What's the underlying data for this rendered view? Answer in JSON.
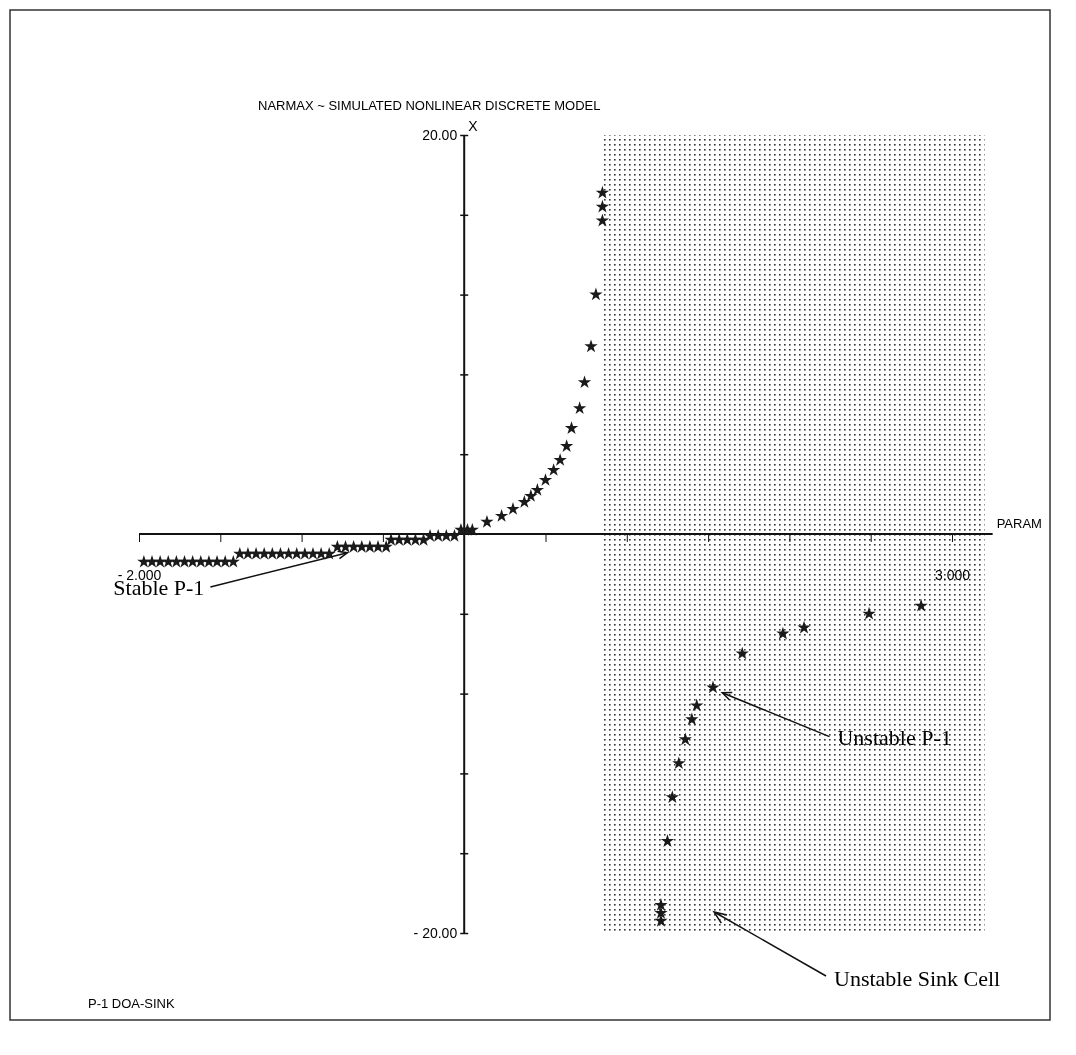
{
  "chart_data": {
    "type": "scatter",
    "title": "NARMAX ~ SIMULATED NONLINEAR DISCRETE MODEL",
    "xlabel": "PARAM",
    "ylabel": "X",
    "xlim": [
      -2,
      3.25
    ],
    "ylim": [
      -20,
      20
    ],
    "xticks": [
      {
        "value": -2,
        "label": "- 2.000"
      },
      {
        "value": -1.5,
        "label": null
      },
      {
        "value": -1,
        "label": null
      },
      {
        "value": -0.5,
        "label": null
      },
      {
        "value": 0.5,
        "label": null
      },
      {
        "value": 1,
        "label": null
      },
      {
        "value": 1.5,
        "label": null
      },
      {
        "value": 2,
        "label": null
      },
      {
        "value": 2.5,
        "label": null
      },
      {
        "value": 3,
        "label": "3.000"
      }
    ],
    "yticks": [
      {
        "value": -20,
        "label": "- 20.00"
      },
      {
        "value": -16,
        "label": null
      },
      {
        "value": -12,
        "label": null
      },
      {
        "value": -8,
        "label": null
      },
      {
        "value": -4,
        "label": null
      },
      {
        "value": 4,
        "label": null
      },
      {
        "value": 8,
        "label": null
      },
      {
        "value": 12,
        "label": null
      },
      {
        "value": 16,
        "label": null
      },
      {
        "value": 20,
        "label": "20.00"
      }
    ],
    "grid": false,
    "marker": "star",
    "series": [
      {
        "color": "#1a1a1a",
        "x": [
          -1.97,
          -1.92,
          -1.87,
          -1.82,
          -1.77,
          -1.72,
          -1.67,
          -1.62,
          -1.57,
          -1.52,
          -1.47,
          -1.42,
          -1.38,
          -1.33,
          -1.28,
          -1.23,
          -1.18,
          -1.13,
          -1.08,
          -1.03,
          -0.98,
          -0.93,
          -0.88,
          -0.83,
          -0.78,
          -0.73,
          -0.68,
          -0.63,
          -0.58,
          -0.53,
          -0.48,
          -0.45,
          -0.4,
          -0.35,
          -0.3,
          -0.25,
          -0.21,
          -0.16,
          -0.11,
          -0.06,
          -0.02,
          0.02,
          0.05,
          0.14,
          0.23,
          0.3,
          0.37,
          0.41,
          0.45,
          0.5,
          0.55,
          0.59,
          0.63,
          0.66,
          0.71,
          0.74,
          0.78,
          0.81,
          0.85,
          0.85,
          0.85
        ],
        "values": [
          -1.4,
          -1.4,
          -1.4,
          -1.4,
          -1.4,
          -1.4,
          -1.4,
          -1.4,
          -1.4,
          -1.4,
          -1.4,
          -1.4,
          -1.0,
          -1.0,
          -1.0,
          -1.0,
          -1.0,
          -1.0,
          -1.0,
          -1.0,
          -1.0,
          -1.0,
          -1.0,
          -1.0,
          -0.65,
          -0.65,
          -0.65,
          -0.65,
          -0.65,
          -0.65,
          -0.65,
          -0.3,
          -0.3,
          -0.3,
          -0.3,
          -0.3,
          -0.1,
          -0.1,
          -0.1,
          -0.1,
          0.2,
          0.2,
          0.2,
          0.6,
          0.9,
          1.25,
          1.6,
          1.9,
          2.2,
          2.7,
          3.2,
          3.7,
          4.4,
          5.3,
          6.3,
          7.6,
          9.4,
          12.0,
          15.7,
          16.4,
          17.1
        ]
      },
      {
        "color": "#1a1a1a",
        "x": [
          1.21,
          1.21,
          1.21,
          1.25,
          1.28,
          1.32,
          1.36,
          1.4,
          1.43,
          1.53,
          1.71,
          1.96,
          2.09,
          2.49,
          2.81
        ],
        "values": [
          -18.6,
          -19.0,
          -19.4,
          -15.4,
          -13.2,
          -11.5,
          -10.3,
          -9.3,
          -8.6,
          -7.7,
          -6.0,
          -5.0,
          -4.7,
          -4.0,
          -3.6
        ]
      }
    ],
    "bands": [
      {
        "axis": "x",
        "from": 0.85,
        "to": 3.2,
        "color": "#333333"
      }
    ],
    "annotations": [
      {
        "text": "Stable P-1",
        "x": -0.7,
        "y": -0.9
      },
      {
        "text": "Unstable P-1",
        "x": 1.57,
        "y": -7.9
      },
      "Unstable Sink Cell",
      "P-1 DOA-SINK"
    ]
  }
}
